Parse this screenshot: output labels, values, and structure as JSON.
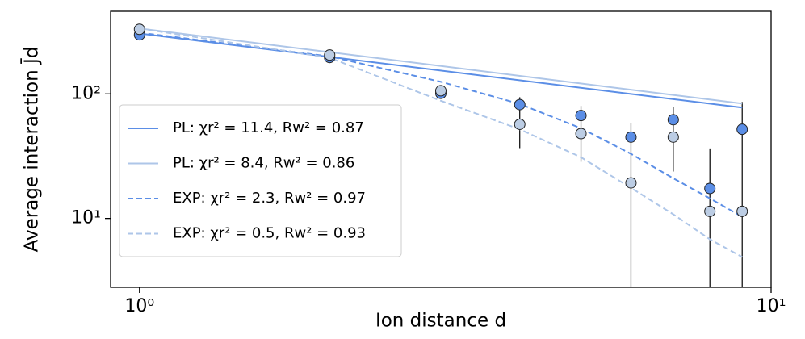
{
  "chart_data": {
    "type": "scatter",
    "x_label": "Ion distance d",
    "y_label": "Average interaction J̄d",
    "xlog": true,
    "ylog": true,
    "xlim": [
      0.9,
      10
    ],
    "ylim": [
      2.8,
      460
    ],
    "xticks": [
      {
        "value": 1,
        "label": "10⁰"
      },
      {
        "value": 10,
        "label": "10¹"
      }
    ],
    "yticks": [
      {
        "value": 10,
        "label": "10¹"
      },
      {
        "value": 100,
        "label": "10²"
      }
    ],
    "legend": "lower left",
    "series": [
      {
        "style": "points",
        "color": "#5b8ee6",
        "x": [
          1,
          2,
          3,
          4,
          5,
          6,
          7,
          8,
          9
        ],
        "values": [
          298,
          196,
          101,
          82,
          67,
          45,
          62,
          17.4,
          52
        ],
        "err_low": [
          null,
          null,
          null,
          36.7,
          28.5,
          2,
          23.8,
          2,
          2
        ],
        "err_high": [
          null,
          null,
          null,
          94,
          80,
          58,
          79,
          36.5,
          86
        ]
      },
      {
        "style": "points",
        "color": "#bccde4",
        "x": [
          1,
          2,
          3,
          4,
          5,
          6,
          7,
          8,
          9
        ],
        "values": [
          330,
          205,
          106,
          57,
          48,
          19.3,
          45,
          11.4,
          11.4
        ]
      },
      {
        "style": "solid",
        "name": "PL: χr² = 11.4, Rw² = 0.87",
        "color": "#5b8ee6",
        "x": [
          1,
          9
        ],
        "values": [
          305,
          77.6
        ]
      },
      {
        "style": "solid",
        "name": "PL: χr² = 8.4, Rw² = 0.86",
        "color": "#aec6e8",
        "x": [
          1,
          9
        ],
        "values": [
          335,
          83.6
        ]
      },
      {
        "style": "dashed",
        "name": "EXP: χr² = 2.3, Rw² = 0.97",
        "color": "#5b8ee6",
        "x": [
          1,
          2,
          3,
          4,
          5,
          6,
          7,
          8,
          9
        ],
        "values": [
          310,
          200,
          125,
          83,
          53,
          33,
          21,
          14.5,
          10.3
        ]
      },
      {
        "style": "dashed",
        "name": "EXP: χr² = 0.5, Rw² = 0.93",
        "color": "#aec6e8",
        "x": [
          1,
          2,
          3,
          4,
          5,
          6,
          7,
          8,
          9
        ],
        "values": [
          335,
          195,
          88,
          52,
          31,
          17.6,
          10.8,
          6.8,
          4.9
        ]
      }
    ]
  }
}
